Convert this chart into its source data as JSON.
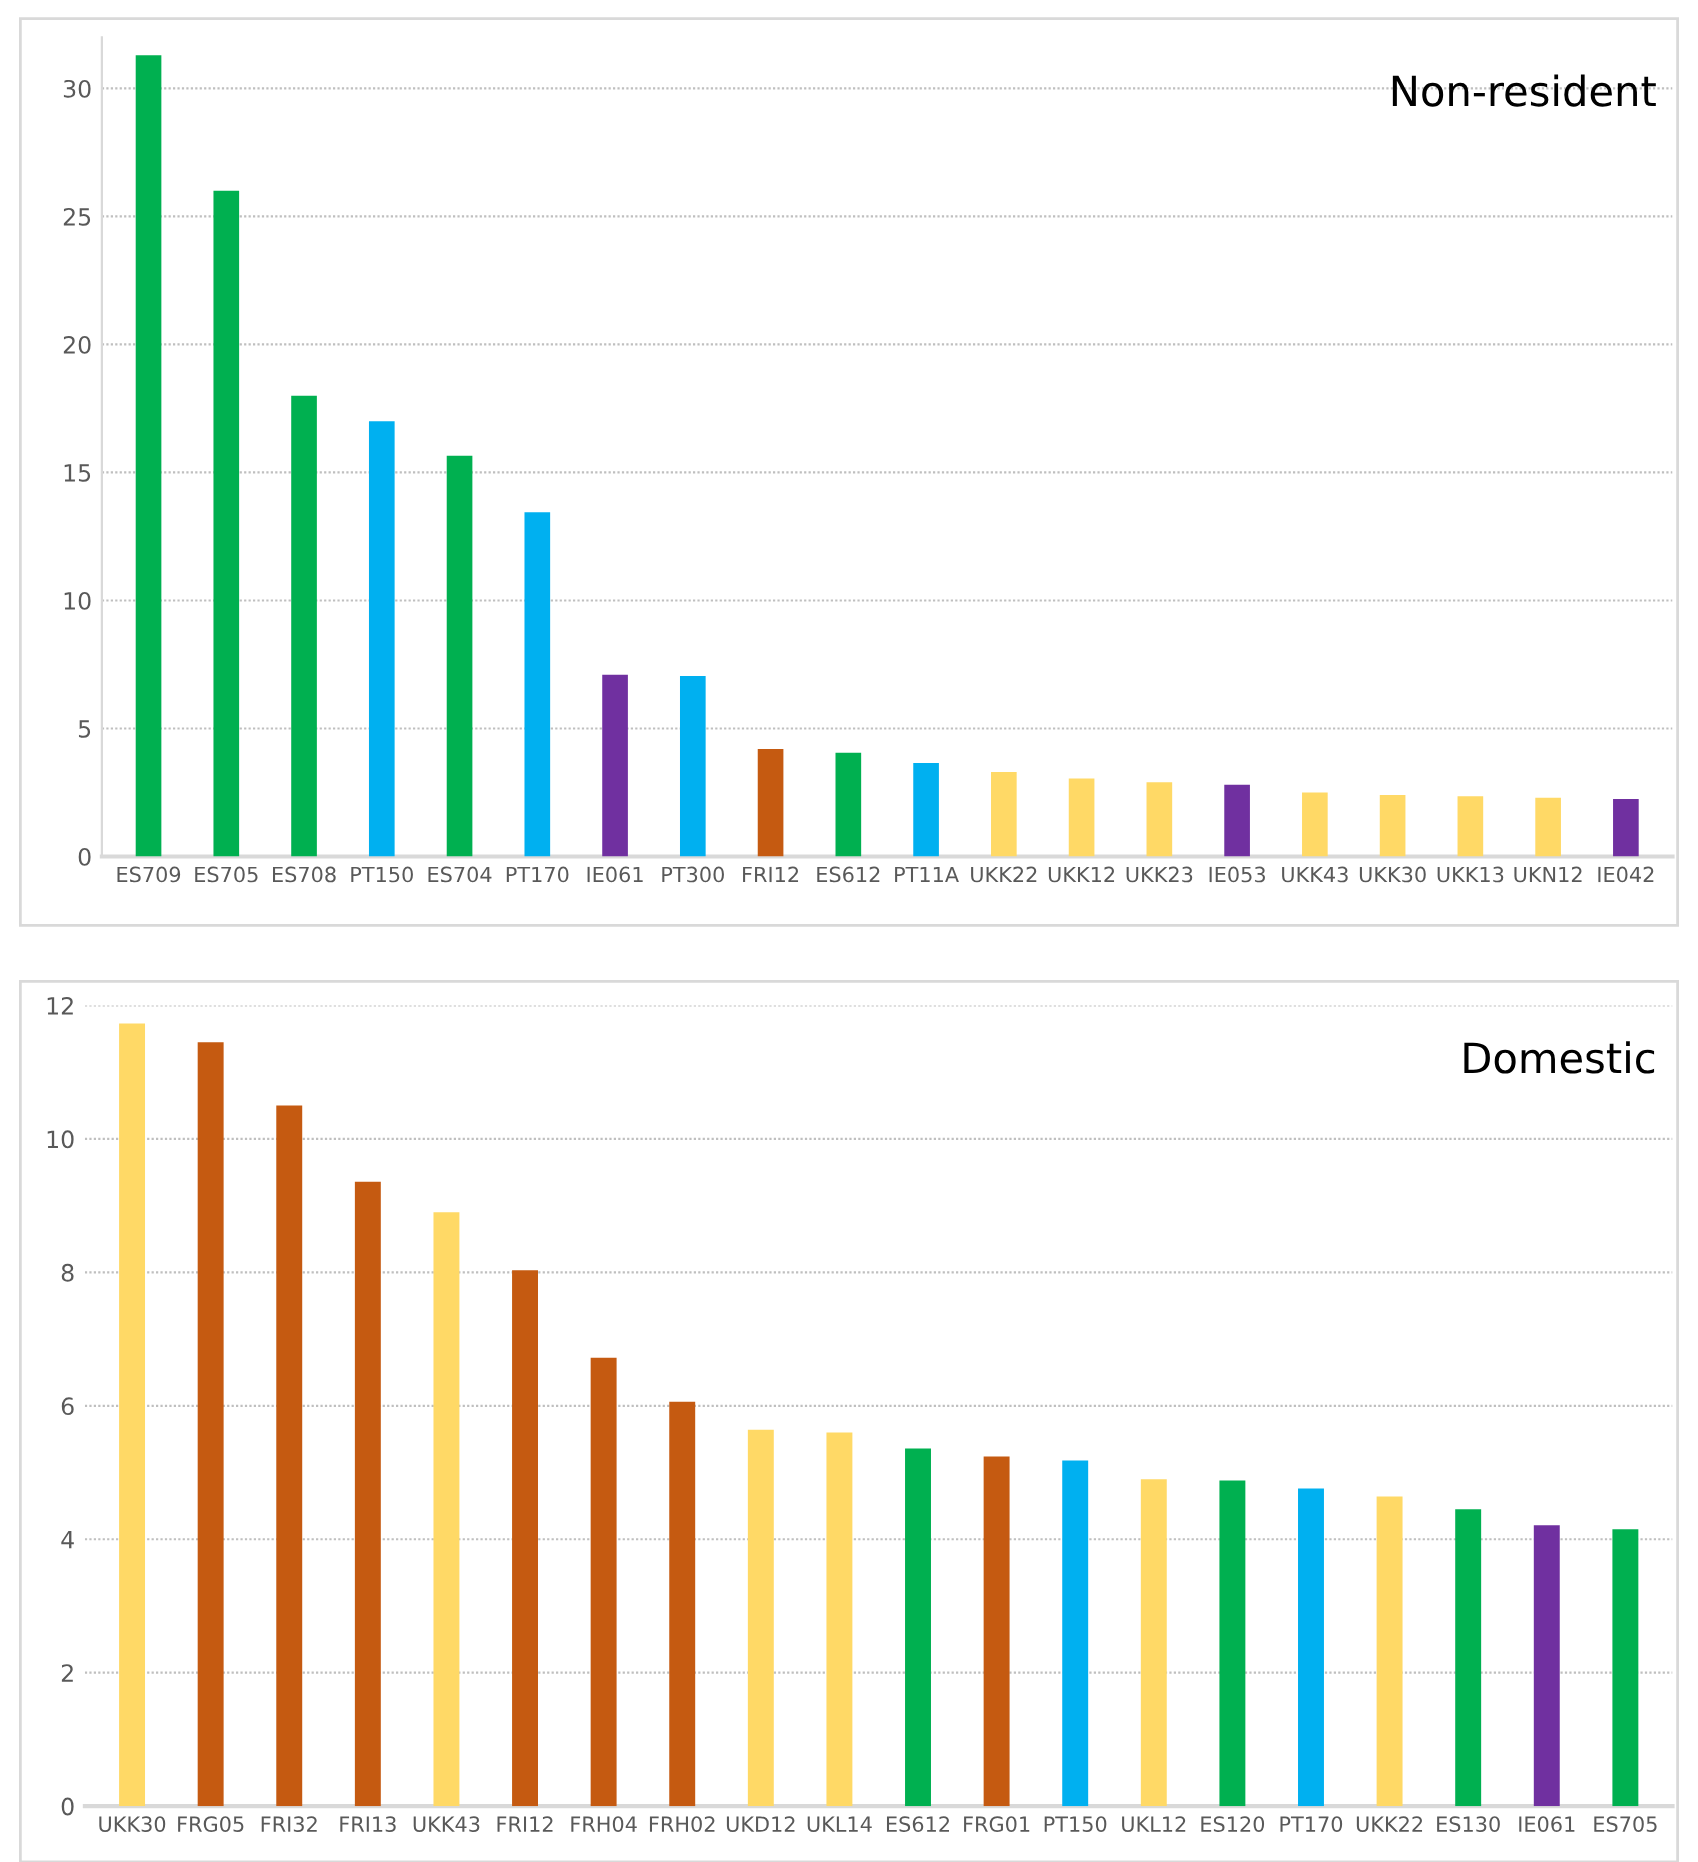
{
  "chart_data": [
    {
      "type": "bar",
      "title": "Non-resident",
      "categories": [
        "ES709",
        "ES705",
        "ES708",
        "PT150",
        "ES704",
        "PT170",
        "IE061",
        "PT300",
        "FRI12",
        "ES612",
        "PT11A",
        "UKK22",
        "UKK12",
        "UKK23",
        "IE053",
        "UKK43",
        "UKK30",
        "UKK13",
        "UKN12",
        "IE042"
      ],
      "values": [
        31.3,
        26.0,
        18.0,
        17.0,
        15.65,
        13.45,
        7.1,
        7.05,
        4.2,
        4.05,
        3.65,
        3.3,
        3.05,
        2.9,
        2.8,
        2.5,
        2.4,
        2.35,
        2.3,
        2.25
      ],
      "colors": [
        "#00b050",
        "#00b050",
        "#00b050",
        "#00b0f0",
        "#00b050",
        "#00b0f0",
        "#7030a0",
        "#00b0f0",
        "#c55a11",
        "#00b050",
        "#00b0f0",
        "#ffd966",
        "#ffd966",
        "#ffd966",
        "#7030a0",
        "#ffd966",
        "#ffd966",
        "#ffd966",
        "#ffd966",
        "#7030a0"
      ],
      "ylim": [
        0,
        32
      ],
      "yticks": [
        0,
        5,
        10,
        15,
        20,
        25,
        30
      ],
      "grid": "y"
    },
    {
      "type": "bar",
      "title": "Domestic",
      "categories": [
        "UKK30",
        "FRG05",
        "FRI32",
        "FRI13",
        "UKK43",
        "FRI12",
        "FRH04",
        "FRH02",
        "UKD12",
        "UKL14",
        "ES612",
        "FRG01",
        "PT150",
        "UKL12",
        "ES120",
        "PT170",
        "UKK22",
        "ES130",
        "IE061",
        "ES705"
      ],
      "values": [
        11.73,
        11.45,
        10.5,
        9.36,
        8.9,
        8.03,
        6.72,
        6.06,
        5.64,
        5.6,
        5.36,
        5.24,
        5.18,
        4.9,
        4.88,
        4.76,
        4.64,
        4.45,
        4.21,
        4.15
      ],
      "colors": [
        "#ffd966",
        "#c55a11",
        "#c55a11",
        "#c55a11",
        "#ffd966",
        "#c55a11",
        "#c55a11",
        "#c55a11",
        "#ffd966",
        "#ffd966",
        "#00b050",
        "#c55a11",
        "#00b0f0",
        "#ffd966",
        "#00b050",
        "#00b0f0",
        "#ffd966",
        "#00b050",
        "#7030a0",
        "#00b050"
      ],
      "ylim": [
        0,
        12
      ],
      "yticks": [
        0,
        2,
        4,
        6,
        8,
        10,
        12
      ],
      "grid": "y"
    }
  ]
}
